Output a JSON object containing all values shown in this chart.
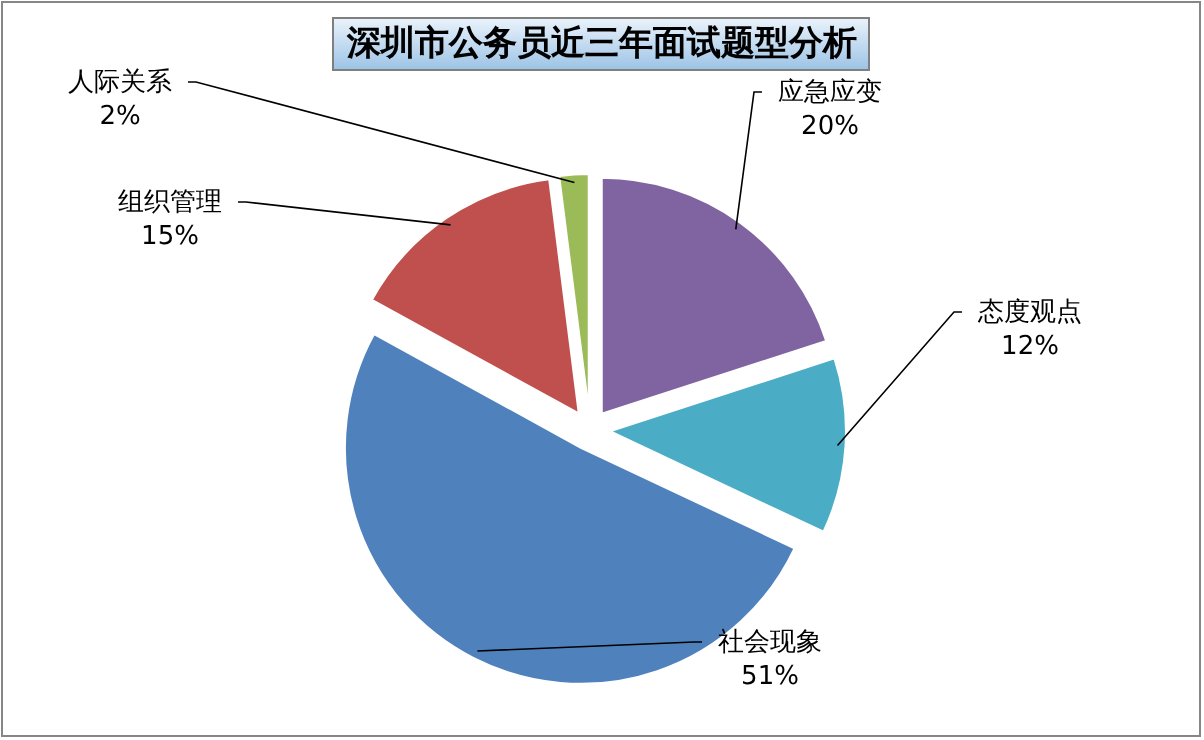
{
  "chart_data": {
    "type": "pie",
    "title": "深圳市公务员近三年面试题型分析",
    "categories": [
      "应急应变",
      "态度观点",
      "社会现象",
      "组织管理",
      "人际关系"
    ],
    "values": [
      20,
      12,
      51,
      15,
      2
    ],
    "colors": [
      "#8064a2",
      "#4bacc6",
      "#4f81bd",
      "#c0504d",
      "#9bbb59"
    ],
    "value_labels": [
      "20%",
      "12%",
      "51%",
      "15%",
      "2%"
    ],
    "legend": false
  }
}
